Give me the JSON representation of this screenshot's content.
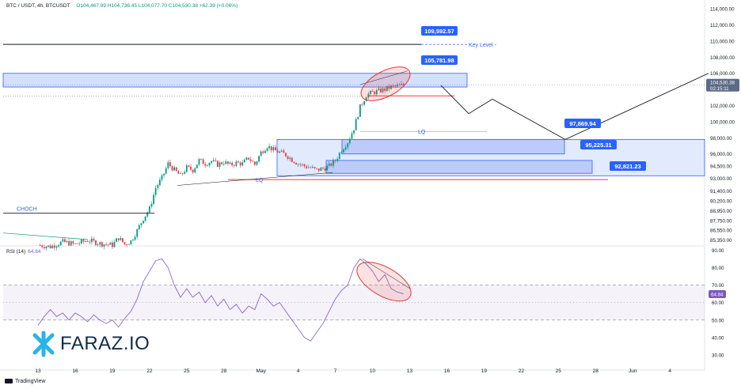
{
  "header": {
    "symbol": "BTC / USDT, 4h, BTCUSDT",
    "ohlc": "O104,467.99 H104,736.45 L104,077.70 C104,530.38 +62.39 (+0.06%)"
  },
  "rsi": {
    "title": "RSI (14)",
    "value": "64.84",
    "axis_label": "64.84"
  },
  "last_price": {
    "value": "104,530.38",
    "countdown": "02:15:11"
  },
  "footer": {
    "brand": "TradingView"
  },
  "watermark": {
    "text": "FARAZ.IO"
  },
  "colors": {
    "up": "#089981",
    "down": "#f23645",
    "zone_fill": "#c5d4fb",
    "zone_border": "#2962ff",
    "label_bg": "#2962ff",
    "rsi_line": "#7e57c2",
    "ellipse": "#e53935",
    "price_tag": "#5b6a86"
  },
  "chart_data": {
    "type": "candlestick",
    "symbol": "BTC / USDT",
    "timeframe": "4h",
    "price_axis": {
      "ticks": [
        "114,000.00",
        "112,000.00",
        "110,000.00",
        "108,000.00",
        "106,000.00",
        "104,000.00",
        "102,000.00",
        "100,000.00",
        "98,000.00",
        "96,000.00",
        "94,500.00",
        "93,000.00",
        "91,400.00",
        "90,200.00",
        "88,950.00",
        "87,750.00",
        "86,550.00",
        "85,350.00"
      ],
      "tick_values": [
        114000,
        112000,
        110000,
        108000,
        106000,
        104000,
        102000,
        100000,
        98000,
        96000,
        94500,
        93000,
        91400,
        90200,
        88950,
        87750,
        86550,
        85350
      ],
      "range": [
        84700,
        114700
      ]
    },
    "rsi_axis": {
      "ticks": [
        "90.00",
        "80.00",
        "70.00",
        "60.00",
        "50.00",
        "40.00",
        "30.00"
      ],
      "tick_values": [
        90,
        80,
        70,
        60,
        50,
        40,
        30
      ],
      "range": [
        25,
        92
      ],
      "band": [
        50,
        70
      ]
    },
    "time_axis": {
      "labels": [
        "13",
        "16",
        "19",
        "22",
        "25",
        "28",
        "May",
        "4",
        "7",
        "10",
        "13",
        "16",
        "19",
        "22",
        "25",
        "28",
        "Jun",
        "4"
      ],
      "day_index": [
        0,
        3,
        6,
        9,
        12,
        15,
        18,
        21,
        24,
        27,
        30,
        33,
        36,
        39,
        42,
        45,
        48,
        51
      ]
    },
    "levels": [
      {
        "label": "109,592.57",
        "value": 109592.57,
        "note": "Key Level -"
      },
      {
        "label": "105,781.98",
        "value": 105781.98
      },
      {
        "label": "97,869.94",
        "value": 97869.94
      },
      {
        "label": "95,225.31",
        "value": 95225.31
      },
      {
        "label": "92,821.23",
        "value": 92821.23
      }
    ],
    "annotations": [
      "CHOCH",
      "LQ",
      "LQ"
    ],
    "zones": [
      {
        "top": 106000,
        "bottom": 104300
      },
      {
        "top": 97800,
        "bottom": 93300
      },
      {
        "top": 97800,
        "bottom": 96000
      },
      {
        "top": 95200,
        "bottom": 93600
      }
    ],
    "projection_path_price": [
      104500,
      101000,
      102800,
      97800,
      106000
    ],
    "close_path": [
      [
        0,
        84700
      ],
      [
        1,
        84500
      ],
      [
        2,
        85100
      ],
      [
        3,
        84800
      ],
      [
        4,
        85300
      ],
      [
        5,
        84900
      ],
      [
        6,
        84700
      ],
      [
        6.5,
        85600
      ],
      [
        7,
        84800
      ],
      [
        7.5,
        85200
      ],
      [
        8,
        86500
      ],
      [
        8.5,
        88000
      ],
      [
        9,
        89200
      ],
      [
        9.5,
        91800
      ],
      [
        10,
        93000
      ],
      [
        10.5,
        94800
      ],
      [
        11,
        94000
      ],
      [
        11.5,
        93300
      ],
      [
        12,
        94300
      ],
      [
        12.5,
        94000
      ],
      [
        13,
        95200
      ],
      [
        13.5,
        94800
      ],
      [
        14,
        95100
      ],
      [
        14.5,
        94700
      ],
      [
        15,
        95000
      ],
      [
        15.5,
        94600
      ],
      [
        16,
        94900
      ],
      [
        16.5,
        94800
      ],
      [
        17,
        95500
      ],
      [
        17.5,
        94700
      ],
      [
        18,
        96200
      ],
      [
        18.5,
        97000
      ],
      [
        19,
        96500
      ],
      [
        19.5,
        96200
      ],
      [
        20,
        95900
      ],
      [
        20.5,
        95300
      ],
      [
        21,
        94800
      ],
      [
        21.5,
        94500
      ],
      [
        22,
        94300
      ],
      [
        22.5,
        94000
      ],
      [
        23,
        94200
      ],
      [
        23.5,
        94500
      ],
      [
        24,
        95200
      ],
      [
        24.5,
        96500
      ],
      [
        25,
        97500
      ],
      [
        25.5,
        99200
      ],
      [
        26,
        101800
      ],
      [
        26.5,
        103300
      ],
      [
        27,
        103600
      ],
      [
        27.5,
        103800
      ],
      [
        28,
        104000
      ],
      [
        28.5,
        104300
      ],
      [
        29,
        104400
      ],
      [
        29.5,
        104530
      ]
    ],
    "rsi_path": [
      [
        0,
        47
      ],
      [
        0.5,
        52
      ],
      [
        1,
        56
      ],
      [
        1.5,
        52
      ],
      [
        2,
        54
      ],
      [
        2.5,
        50
      ],
      [
        3,
        54
      ],
      [
        3.5,
        52
      ],
      [
        4,
        49
      ],
      [
        4.5,
        53
      ],
      [
        5,
        50
      ],
      [
        5.5,
        48
      ],
      [
        6,
        50
      ],
      [
        6.5,
        46
      ],
      [
        7,
        51
      ],
      [
        7.5,
        55
      ],
      [
        8,
        62
      ],
      [
        8.5,
        72
      ],
      [
        9,
        78
      ],
      [
        9.5,
        84
      ],
      [
        10,
        85
      ],
      [
        10.5,
        80
      ],
      [
        11,
        70
      ],
      [
        11.5,
        63
      ],
      [
        12,
        68
      ],
      [
        12.5,
        63
      ],
      [
        13,
        66
      ],
      [
        13.5,
        60
      ],
      [
        14,
        64
      ],
      [
        14.5,
        58
      ],
      [
        15,
        62
      ],
      [
        15.5,
        56
      ],
      [
        16,
        59
      ],
      [
        16.5,
        54
      ],
      [
        17,
        58
      ],
      [
        17.5,
        56
      ],
      [
        18,
        65
      ],
      [
        18.5,
        62
      ],
      [
        19,
        58
      ],
      [
        19.5,
        60
      ],
      [
        20,
        55
      ],
      [
        20.5,
        50
      ],
      [
        21,
        45
      ],
      [
        21.5,
        40
      ],
      [
        22,
        38
      ],
      [
        22.5,
        43
      ],
      [
        23,
        48
      ],
      [
        23.5,
        55
      ],
      [
        24,
        62
      ],
      [
        24.5,
        67
      ],
      [
        25,
        70
      ],
      [
        25.5,
        80
      ],
      [
        26,
        85
      ],
      [
        26.5,
        82
      ],
      [
        27,
        78
      ],
      [
        27.5,
        72
      ],
      [
        28,
        76
      ],
      [
        28.5,
        68
      ],
      [
        29,
        66
      ],
      [
        29.5,
        65
      ]
    ]
  }
}
